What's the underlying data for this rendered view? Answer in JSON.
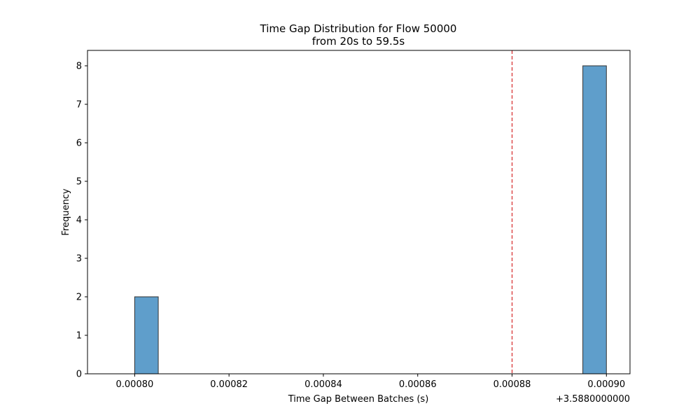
{
  "chart_data": {
    "type": "bar",
    "title": "Time Gap Distribution for Flow 50000",
    "subtitle": "from 20s to 59.5s",
    "xlabel": "Time Gap Between Batches (s)",
    "ylabel": "Frequency",
    "x_offset_label": "+3.5880000000",
    "xlim": [
      0.00079,
      0.000905
    ],
    "ylim": [
      0,
      8.4
    ],
    "x_ticks": [
      0.0008,
      0.00082,
      0.00084,
      0.00086,
      0.00088,
      0.0009
    ],
    "x_tick_labels": [
      "0.00080",
      "0.00082",
      "0.00084",
      "0.00086",
      "0.00088",
      "0.00090"
    ],
    "y_ticks": [
      0,
      1,
      2,
      3,
      4,
      5,
      6,
      7,
      8
    ],
    "y_tick_labels": [
      "0",
      "1",
      "2",
      "3",
      "4",
      "5",
      "6",
      "7",
      "8"
    ],
    "bins": [
      {
        "x0": 0.0008,
        "x1": 0.000805,
        "count": 2
      },
      {
        "x0": 0.000895,
        "x1": 0.0009,
        "count": 8
      }
    ],
    "reference_line": {
      "x": 0.00088,
      "color": "#d62728",
      "style": "dashed"
    },
    "bar_color": "#5f9ecb",
    "bar_edge_color": "#333333",
    "grid": false,
    "legend": "none"
  }
}
